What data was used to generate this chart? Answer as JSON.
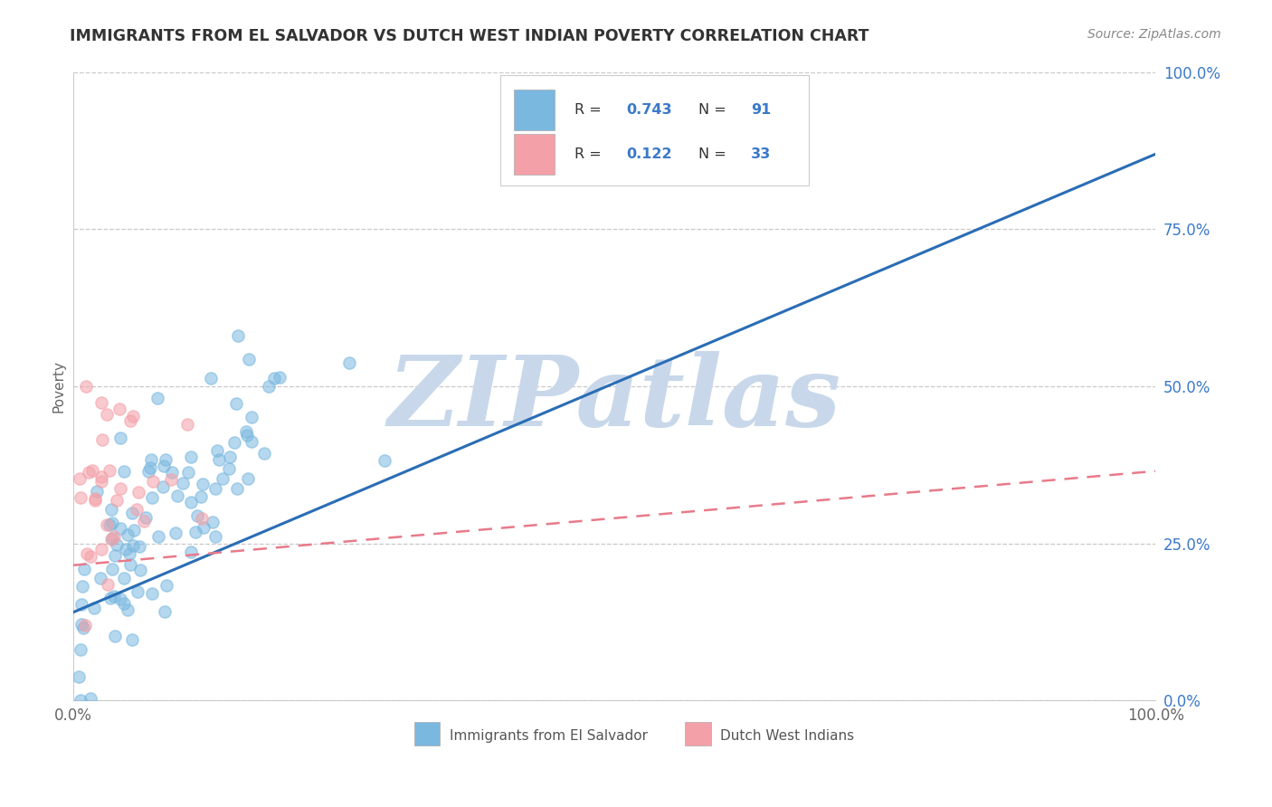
{
  "title": "IMMIGRANTS FROM EL SALVADOR VS DUTCH WEST INDIAN POVERTY CORRELATION CHART",
  "source_text": "Source: ZipAtlas.com",
  "ylabel": "Poverty",
  "watermark": "ZIPatlas",
  "x_tick_labels": [
    "0.0%",
    "100.0%"
  ],
  "y_tick_labels_right": [
    "0.0%",
    "25.0%",
    "50.0%",
    "75.0%",
    "100.0%"
  ],
  "legend_label1": "Immigrants from El Salvador",
  "legend_label2": "Dutch West Indians",
  "scatter1_color": "#7ab8e0",
  "scatter2_color": "#f4a0a8",
  "line1_color": "#2a6db5",
  "line2_color": "#e87a8a",
  "title_color": "#333333",
  "watermark_color": "#c8d8ea",
  "background_color": "#ffffff",
  "grid_color": "#c8c8c8",
  "text_blue": "#3b79c9",
  "text_dark": "#333333",
  "R1": 0.743,
  "N1": 91,
  "R2": 0.122,
  "N2": 33,
  "line1_x0": 0.0,
  "line1_y0": 0.14,
  "line1_x1": 1.0,
  "line1_y1": 0.87,
  "line2_x0": 0.0,
  "line2_y0": 0.215,
  "line2_x1": 1.0,
  "line2_y1": 0.365,
  "xlim": [
    0,
    1
  ],
  "ylim": [
    0,
    1
  ]
}
